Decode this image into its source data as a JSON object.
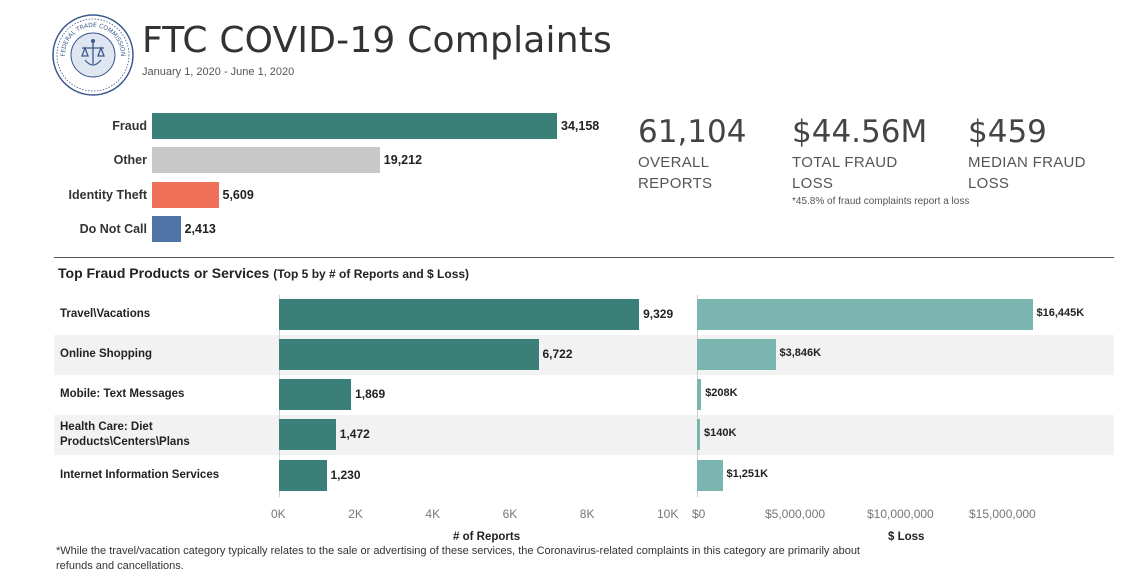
{
  "header": {
    "title": "FTC COVID-19 Complaints",
    "date_range": "January 1, 2020 - June 1, 2020",
    "seal_text_top": "FEDERAL TRADE COMMISSION",
    "seal_text_bottom": "UNITED STATES OF AMERICA"
  },
  "kpis": [
    {
      "value": "61,104",
      "label": "OVERALL REPORTS"
    },
    {
      "value": "$44.56M",
      "label": "TOTAL FRAUD LOSS"
    },
    {
      "value": "$459",
      "label": "MEDIAN FRAUD LOSS"
    }
  ],
  "kpi_note": "*45.8% of fraud complaints report a loss",
  "section": {
    "title": "Top Fraud Products or Services",
    "subtitle": "(Top 5 by # of Reports and $ Loss)"
  },
  "footnote": "*While the travel/vacation category typically relates to the sale or advertising of these services, the Coronavirus-related complaints in this category are primarily about refunds and cancellations.",
  "colors": {
    "fraud": "#3a8079",
    "other": "#c8c8c8",
    "identity_theft": "#f0715a",
    "do_not_call": "#4f75a6",
    "reports_bar": "#3a8079",
    "loss_bar": "#7ab5b0",
    "band": "#f2f2f2"
  },
  "chart_data": [
    {
      "type": "bar",
      "orientation": "horizontal",
      "categories": [
        "Fraud",
        "Other",
        "Identity Theft",
        "Do Not Call"
      ],
      "values": [
        34158,
        19212,
        5609,
        2413
      ],
      "labels": [
        "34,158",
        "19,212",
        "5,609",
        "2,413"
      ],
      "colors": [
        "#3a8079",
        "#c8c8c8",
        "#f0715a",
        "#4f75a6"
      ]
    },
    {
      "type": "bar",
      "orientation": "horizontal",
      "categories": [
        "Travel\\Vacations",
        "Online Shopping",
        "Mobile: Text Messages",
        "Health Care: Diet Products\\Centers\\Plans",
        "Internet Information Services"
      ],
      "values": [
        9329,
        6722,
        1869,
        1472,
        1230
      ],
      "labels": [
        "9,329",
        "6,722",
        "1,869",
        "1,472",
        "1,230"
      ],
      "xlabel": "# of Reports",
      "xlim": [
        0,
        10000
      ],
      "xticks": [
        0,
        2000,
        4000,
        6000,
        8000,
        10000
      ],
      "xtick_labels": [
        "0K",
        "2K",
        "4K",
        "6K",
        "8K",
        "10K"
      ]
    },
    {
      "type": "bar",
      "orientation": "horizontal",
      "categories": [
        "Travel\\Vacations",
        "Online Shopping",
        "Mobile: Text Messages",
        "Health Care: Diet Products\\Centers\\Plans",
        "Internet Information Services"
      ],
      "values": [
        16445000,
        3846000,
        208000,
        140000,
        1251000
      ],
      "labels": [
        "$16,445K",
        "$3,846K",
        "$208K",
        "$140K",
        "$1,251K"
      ],
      "xlabel": "$ Loss",
      "xlim": [
        0,
        20000000
      ],
      "xticks": [
        0,
        5000000,
        10000000,
        15000000
      ],
      "xtick_labels": [
        "$0",
        "$5,000,000",
        "$10,000,000",
        "$15,000,000"
      ]
    }
  ]
}
